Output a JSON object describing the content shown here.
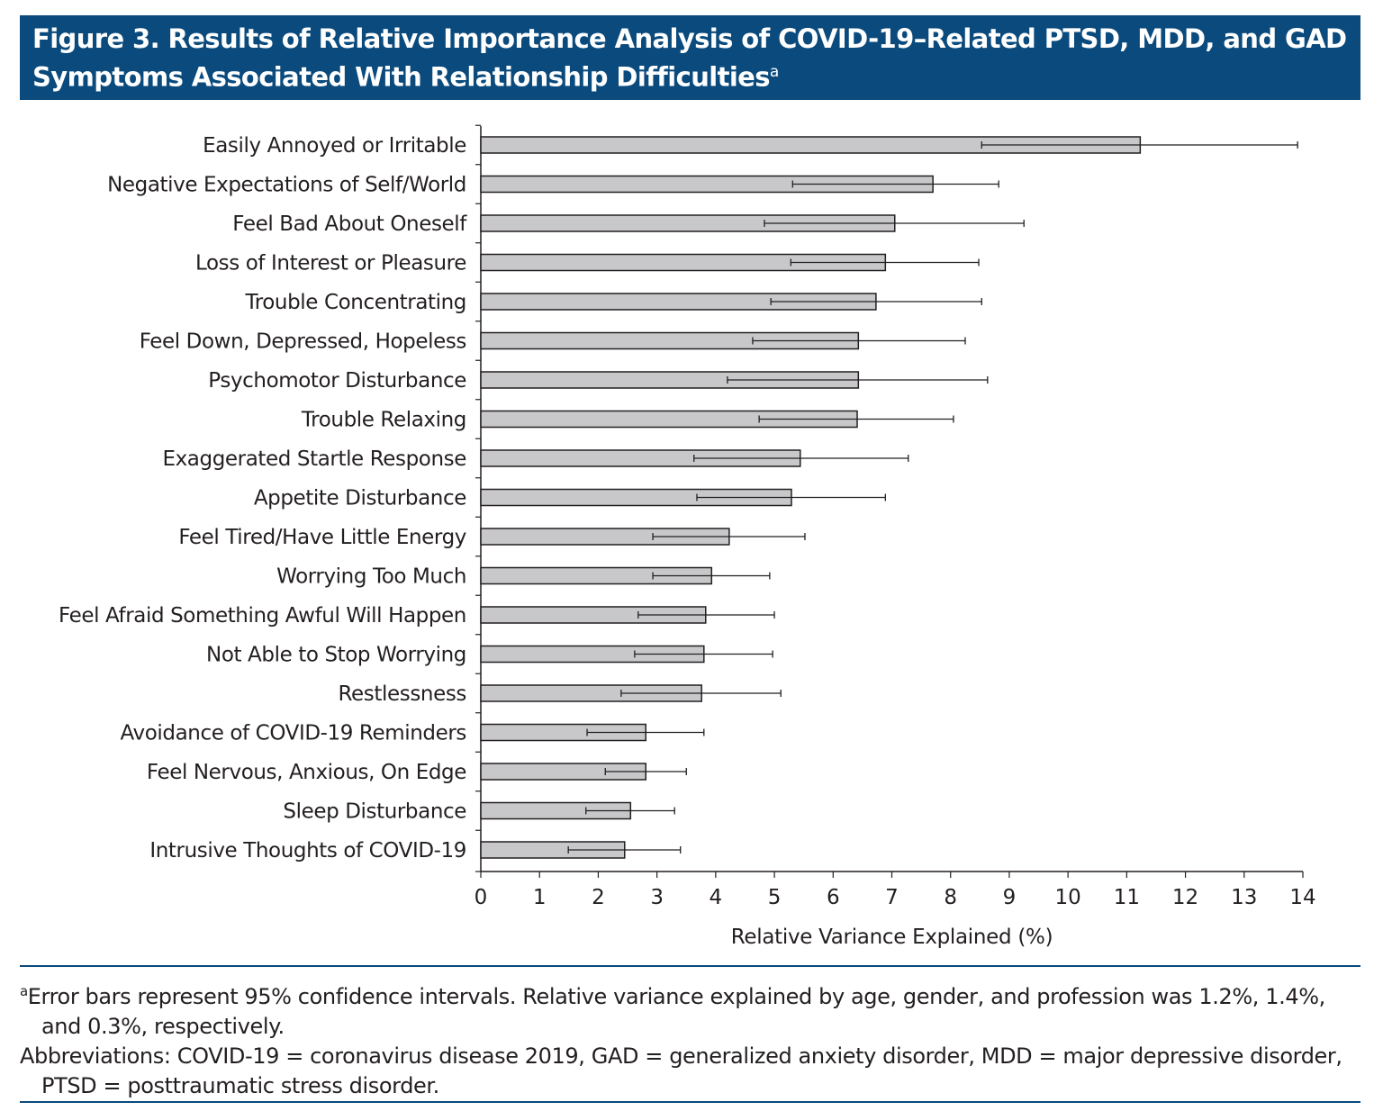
{
  "figure": {
    "title": "Figure 3. Results of Relative Importance Analysis of COVID-19–Related PTSD, MDD, and GAD Symptoms Associated With Relationship Difficulties",
    "title_superscript": "a",
    "title_bg_color": "#0a4a7c"
  },
  "chart_data": {
    "type": "bar",
    "orientation": "horizontal",
    "categories": [
      "Easily Annoyed or Irritable",
      "Negative Expectations of Self/World",
      "Feel Bad About Oneself",
      "Loss of Interest or Pleasure",
      "Trouble Concentrating",
      "Feel Down, Depressed, Hopeless",
      "Psychomotor Disturbance",
      "Trouble Relaxing",
      "Exaggerated Startle Response",
      "Appetite Disturbance",
      "Feel Tired/Have Little Energy",
      "Worrying Too Much",
      "Feel Afraid Something Awful Will Happen",
      "Not Able to Stop Worrying",
      "Restlessness",
      "Avoidance of COVID-19 Reminders",
      "Feel Nervous, Anxious, On Edge",
      "Sleep Disturbance",
      "Intrusive Thoughts of COVID-19"
    ],
    "values": [
      11.23,
      7.7,
      7.05,
      6.89,
      6.73,
      6.43,
      6.43,
      6.41,
      5.44,
      5.29,
      4.23,
      3.93,
      3.83,
      3.8,
      3.76,
      2.81,
      2.81,
      2.55,
      2.45
    ],
    "ci_lower": [
      8.53,
      5.31,
      4.83,
      5.28,
      4.94,
      4.63,
      4.2,
      4.74,
      3.63,
      3.68,
      2.93,
      2.93,
      2.68,
      2.62,
      2.39,
      1.81,
      2.12,
      1.79,
      1.49
    ],
    "ci_upper": [
      13.91,
      8.82,
      9.25,
      8.48,
      8.53,
      8.25,
      8.63,
      8.05,
      7.28,
      6.89,
      5.52,
      4.92,
      5.0,
      4.97,
      5.11,
      3.8,
      3.5,
      3.3,
      3.4
    ],
    "xlabel": "Relative Variance Explained (%)",
    "ylabel": "",
    "xlim": [
      0,
      14
    ],
    "xticks": [
      "0",
      "1",
      "2",
      "3",
      "4",
      "5",
      "6",
      "7",
      "8",
      "9",
      "10",
      "11",
      "12",
      "13",
      "14"
    ],
    "grid": false,
    "bar_color": "#c8c8ca",
    "bar_edge_color": "#231f20"
  },
  "footnotes": {
    "note_marker": "a",
    "note": "Error bars represent 95% confidence intervals. Relative variance explained by age, gender, and profession was 1.2%, 1.4%, and 0.3%, respectively.",
    "abbreviations": "Abbreviations: COVID-19 = coronavirus disease 2019, GAD = generalized anxiety disorder, MDD = major depressive disorder, PTSD = posttraumatic stress disorder."
  }
}
